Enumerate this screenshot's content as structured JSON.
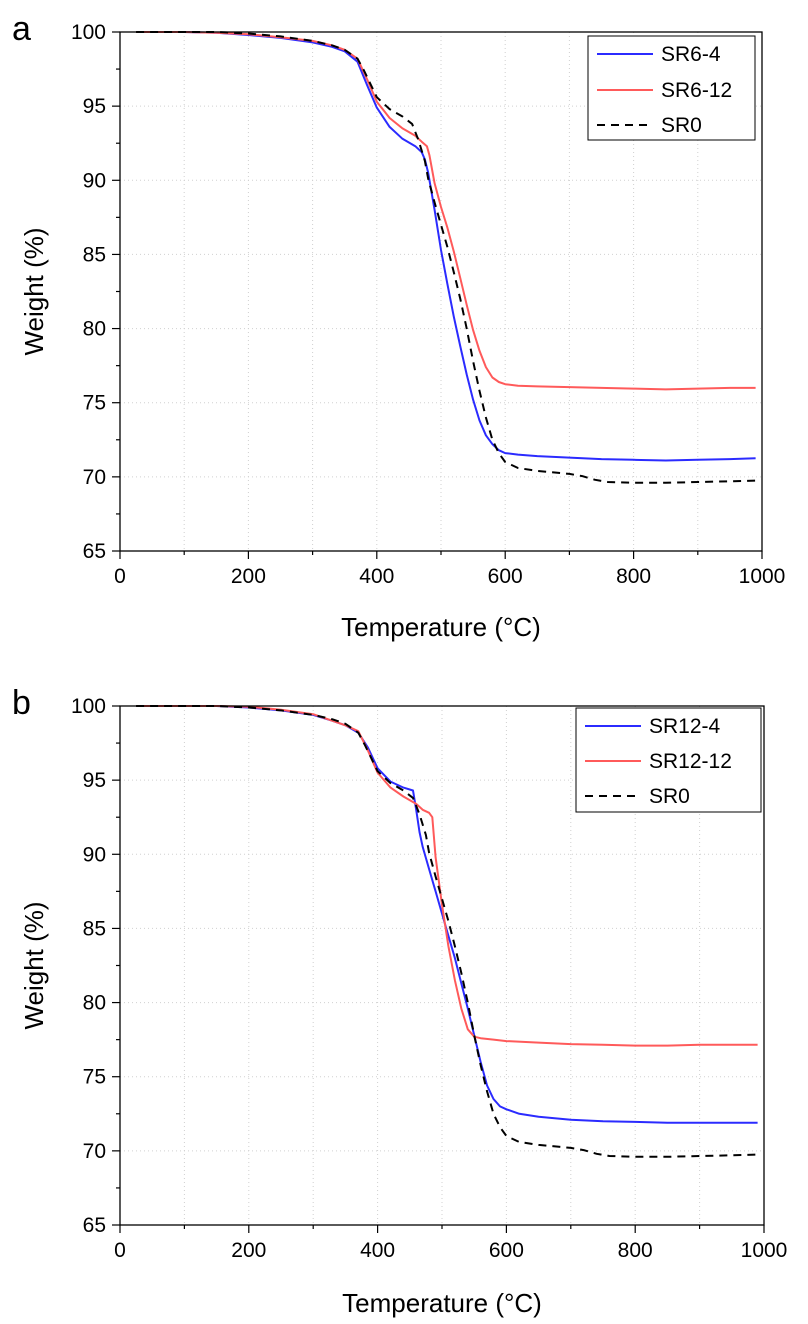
{
  "chart_data": [
    {
      "type": "line",
      "panel_label": "a",
      "xlabel": "Temperature (°C)",
      "ylabel": "Weight (%)",
      "xlim": [
        0,
        1000
      ],
      "ylim": [
        65,
        100
      ],
      "x_ticks": [
        0,
        200,
        400,
        600,
        800,
        1000
      ],
      "y_ticks": [
        65,
        70,
        75,
        80,
        85,
        90,
        95,
        100
      ],
      "grid": true,
      "legend_position": "top-right",
      "series": [
        {
          "name": "SR6-4",
          "color": "#2b2bff",
          "style": "solid",
          "x": [
            25,
            100,
            150,
            200,
            250,
            300,
            330,
            350,
            370,
            385,
            400,
            420,
            440,
            460,
            470,
            475,
            480,
            490,
            500,
            510,
            520,
            530,
            540,
            550,
            560,
            570,
            580,
            590,
            600,
            620,
            650,
            700,
            750,
            800,
            850,
            900,
            950,
            990
          ],
          "y": [
            100,
            100,
            99.95,
            99.8,
            99.6,
            99.3,
            99.0,
            98.7,
            98.0,
            96.4,
            94.9,
            93.6,
            92.8,
            92.3,
            91.9,
            91.4,
            90.5,
            88.0,
            85.3,
            83.0,
            80.8,
            78.8,
            76.9,
            75.2,
            73.8,
            72.8,
            72.2,
            71.8,
            71.6,
            71.5,
            71.4,
            71.3,
            71.2,
            71.15,
            71.1,
            71.15,
            71.2,
            71.25
          ]
        },
        {
          "name": "SR6-12",
          "color": "#ff5a5a",
          "style": "solid",
          "x": [
            25,
            100,
            150,
            200,
            250,
            300,
            330,
            350,
            370,
            385,
            400,
            420,
            440,
            460,
            470,
            478,
            482,
            490,
            500,
            510,
            520,
            530,
            540,
            550,
            560,
            570,
            580,
            590,
            600,
            620,
            650,
            700,
            750,
            800,
            850,
            900,
            950,
            990
          ],
          "y": [
            100,
            100,
            99.95,
            99.85,
            99.65,
            99.4,
            99.1,
            98.8,
            98.2,
            96.8,
            95.3,
            94.2,
            93.5,
            93.0,
            92.6,
            92.3,
            91.7,
            89.8,
            88.2,
            86.8,
            85.2,
            83.4,
            81.6,
            79.9,
            78.5,
            77.4,
            76.7,
            76.4,
            76.25,
            76.15,
            76.1,
            76.05,
            76.0,
            75.95,
            75.9,
            75.95,
            76.0,
            76.0
          ]
        },
        {
          "name": "SR0",
          "color": "#000000",
          "style": "dashed",
          "x": [
            25,
            100,
            150,
            200,
            250,
            300,
            330,
            350,
            370,
            380,
            390,
            400,
            420,
            440,
            455,
            465,
            475,
            480,
            490,
            500,
            510,
            520,
            530,
            540,
            550,
            560,
            570,
            580,
            590,
            600,
            620,
            650,
            700,
            720,
            740,
            760,
            800,
            850,
            900,
            950,
            990
          ],
          "y": [
            100,
            100,
            100,
            99.9,
            99.7,
            99.4,
            99.1,
            98.8,
            98.2,
            97.4,
            96.5,
            95.6,
            94.8,
            94.3,
            93.8,
            92.7,
            91.3,
            90.1,
            88.5,
            87.0,
            85.5,
            83.8,
            82.0,
            80.0,
            77.8,
            75.8,
            74.0,
            72.5,
            71.6,
            71.0,
            70.6,
            70.4,
            70.2,
            70.05,
            69.8,
            69.65,
            69.6,
            69.6,
            69.65,
            69.7,
            69.75
          ]
        }
      ]
    },
    {
      "type": "line",
      "panel_label": "b",
      "xlabel": "Temperature (°C)",
      "ylabel": "Weight (%)",
      "xlim": [
        0,
        1000
      ],
      "ylim": [
        65,
        100
      ],
      "x_ticks": [
        0,
        200,
        400,
        600,
        800,
        1000
      ],
      "y_ticks": [
        65,
        70,
        75,
        80,
        85,
        90,
        95,
        100
      ],
      "grid": true,
      "legend_position": "top-right",
      "series": [
        {
          "name": "SR12-4",
          "color": "#2b2bff",
          "style": "solid",
          "x": [
            25,
            100,
            150,
            200,
            250,
            300,
            330,
            350,
            370,
            385,
            400,
            420,
            440,
            455,
            460,
            465,
            470,
            480,
            490,
            500,
            510,
            520,
            530,
            540,
            550,
            560,
            570,
            580,
            590,
            600,
            620,
            650,
            700,
            750,
            800,
            850,
            900,
            950,
            990
          ],
          "y": [
            100,
            100,
            100,
            99.9,
            99.7,
            99.4,
            99.0,
            98.7,
            98.2,
            97.2,
            95.8,
            94.9,
            94.5,
            94.3,
            93.0,
            91.5,
            90.5,
            89.0,
            87.5,
            86.0,
            84.5,
            83.0,
            81.3,
            79.6,
            77.8,
            76.0,
            74.4,
            73.5,
            73.0,
            72.8,
            72.5,
            72.3,
            72.1,
            72.0,
            71.95,
            71.9,
            71.9,
            71.9,
            71.9
          ]
        },
        {
          "name": "SR12-12",
          "color": "#ff5a5a",
          "style": "solid",
          "x": [
            25,
            100,
            150,
            200,
            250,
            300,
            330,
            350,
            370,
            385,
            400,
            420,
            440,
            460,
            470,
            480,
            485,
            490,
            500,
            510,
            520,
            530,
            540,
            550,
            560,
            580,
            600,
            650,
            700,
            750,
            800,
            850,
            900,
            950,
            990
          ],
          "y": [
            100,
            100,
            100,
            99.95,
            99.75,
            99.45,
            99.0,
            98.7,
            98.3,
            97.0,
            95.5,
            94.5,
            93.9,
            93.4,
            93.0,
            92.8,
            92.5,
            89.8,
            86.6,
            83.8,
            81.5,
            79.6,
            78.2,
            77.7,
            77.6,
            77.5,
            77.4,
            77.3,
            77.2,
            77.15,
            77.1,
            77.1,
            77.15,
            77.15,
            77.15
          ]
        },
        {
          "name": "SR0",
          "color": "#000000",
          "style": "dashed",
          "x": [
            25,
            100,
            150,
            200,
            250,
            300,
            330,
            350,
            370,
            380,
            390,
            400,
            420,
            440,
            455,
            465,
            475,
            480,
            490,
            500,
            510,
            520,
            530,
            540,
            550,
            560,
            570,
            580,
            590,
            600,
            620,
            650,
            700,
            720,
            740,
            760,
            800,
            850,
            900,
            950,
            990
          ],
          "y": [
            100,
            100,
            100,
            99.9,
            99.7,
            99.4,
            99.1,
            98.8,
            98.2,
            97.4,
            96.5,
            95.6,
            94.8,
            94.3,
            93.8,
            92.7,
            91.3,
            90.1,
            88.5,
            87.0,
            85.5,
            83.8,
            82.0,
            80.0,
            77.8,
            75.8,
            74.0,
            72.5,
            71.6,
            71.0,
            70.6,
            70.4,
            70.2,
            70.05,
            69.8,
            69.65,
            69.6,
            69.6,
            69.65,
            69.7,
            69.75
          ]
        }
      ]
    }
  ]
}
